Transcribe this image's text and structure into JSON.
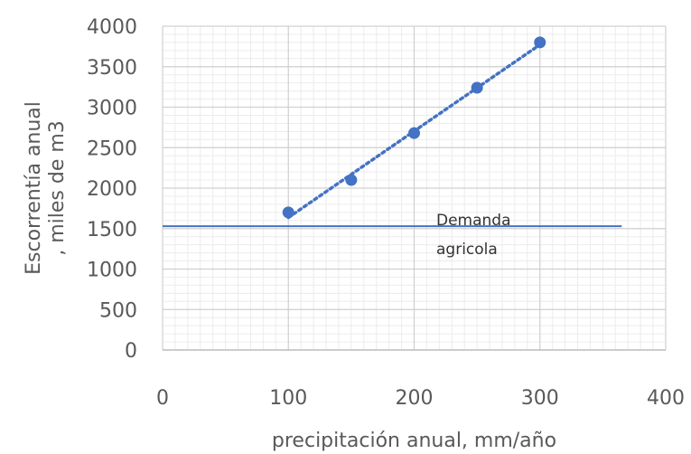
{
  "chart_data": {
    "type": "scatter",
    "xlabel": "precipitación anual, mm/año",
    "ylabel_lines": [
      "Escorrentía anual",
      ", miles de m3"
    ],
    "xlim": [
      0,
      400
    ],
    "ylim": [
      0,
      4000
    ],
    "x_ticks": [
      0,
      100,
      200,
      300,
      400
    ],
    "y_ticks": [
      0,
      500,
      1000,
      1500,
      2000,
      2500,
      3000,
      3500,
      4000
    ],
    "x_minor_step": 10,
    "y_minor_step": 100,
    "grid": true,
    "series": [
      {
        "x": [
          100,
          150,
          200,
          250,
          300
        ],
        "y": [
          1700,
          2100,
          2680,
          3240,
          3800
        ],
        "trendline": "linear dotted",
        "color": "#4472C4"
      }
    ],
    "reference_line": {
      "y": 1530,
      "x_range": [
        0,
        365
      ],
      "label_lines": [
        "Demanda",
        "agricola"
      ],
      "color": "#4472C4"
    }
  }
}
